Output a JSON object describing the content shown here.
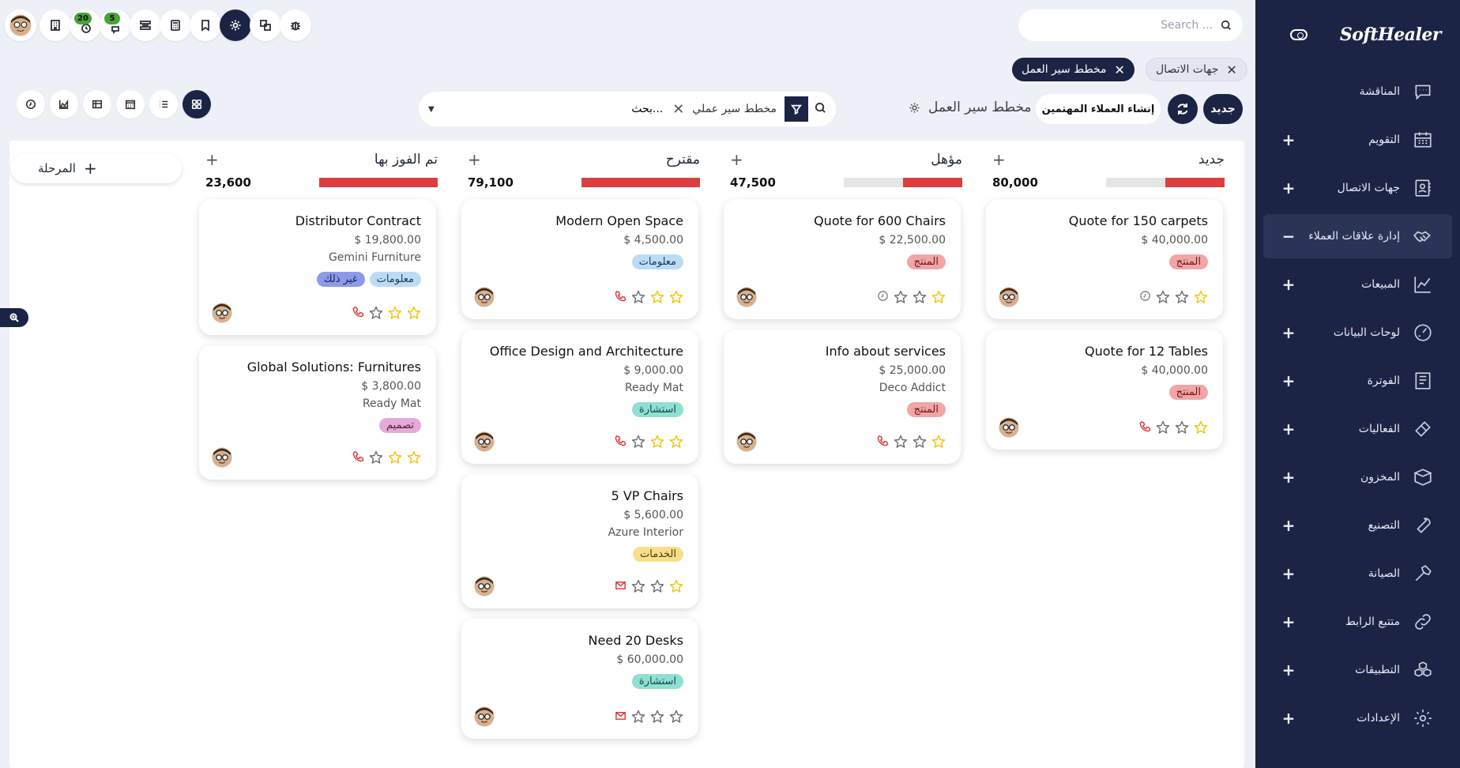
{
  "brand": "SoftHealer",
  "sidebar": {
    "items": [
      {
        "label": "المناقشة",
        "icon": "chat-icon",
        "expandable": false,
        "active": false
      },
      {
        "label": "التقويم",
        "icon": "calendar-icon",
        "expandable": true,
        "active": false
      },
      {
        "label": "جهات الاتصال",
        "icon": "contacts-icon",
        "expandable": true,
        "active": false
      },
      {
        "label": "إدارة علاقات العملاء",
        "icon": "handshake-icon",
        "expandable": true,
        "active": true
      },
      {
        "label": "المبيعات",
        "icon": "sales-chart-icon",
        "expandable": true,
        "active": false
      },
      {
        "label": "لوحات البيانات",
        "icon": "dashboard-icon",
        "expandable": true,
        "active": false
      },
      {
        "label": "الفوترة",
        "icon": "invoice-icon",
        "expandable": true,
        "active": false
      },
      {
        "label": "الفعاليات",
        "icon": "ticket-icon",
        "expandable": true,
        "active": false
      },
      {
        "label": "المخزون",
        "icon": "box-icon",
        "expandable": true,
        "active": false
      },
      {
        "label": "التصنيع",
        "icon": "wrench-icon",
        "expandable": true,
        "active": false
      },
      {
        "label": "الصيانة",
        "icon": "hammer-icon",
        "expandable": true,
        "active": false
      },
      {
        "label": "متتبع الرابط",
        "icon": "link-icon",
        "expandable": true,
        "active": false
      },
      {
        "label": "التطبيقات",
        "icon": "apps-icon",
        "expandable": true,
        "active": false
      },
      {
        "label": "الإعدادات",
        "icon": "settings-icon",
        "expandable": true,
        "active": false
      }
    ],
    "expand_symbol": "+",
    "collapse_symbol": "−"
  },
  "topbar": {
    "search_placeholder": "Search ...",
    "activity_badge": "20",
    "messages_badge": "5"
  },
  "breadcrumb_tabs": [
    {
      "label": "جهات الاتصال"
    },
    {
      "label": "مخطط سير العمل"
    }
  ],
  "toolbar": {
    "new_label": "جديد",
    "create_leads_label": "إنشاء العملاء المهتمين",
    "pipeline_title": "مخطط سير العمل",
    "search_facet": "مخطط سير عملي",
    "search_value": "بحث..."
  },
  "add_stage_label": "المرحلة",
  "colors": {
    "primary": "#1b2444",
    "progress_red": "#dc3f3f",
    "star_yellow": "#f2c200"
  },
  "columns": [
    {
      "title": "جديد",
      "total": "80,000",
      "progress_fill": 0.5,
      "cards": [
        {
          "title": "Quote for 150 carpets",
          "amount": "$ 40,000.00",
          "company": "",
          "tags": [
            {
              "label": "المنتج",
              "kind": "red"
            }
          ],
          "stars": 1,
          "activity": "clock-icon"
        },
        {
          "title": "Quote for 12 Tables",
          "amount": "$ 40,000.00",
          "company": "",
          "tags": [
            {
              "label": "المنتج",
              "kind": "red"
            }
          ],
          "stars": 1,
          "activity": "phone-icon"
        }
      ]
    },
    {
      "title": "مؤهل",
      "total": "47,500",
      "progress_fill": 0.5,
      "cards": [
        {
          "title": "Quote for 600 Chairs",
          "amount": "$ 22,500.00",
          "company": "",
          "tags": [
            {
              "label": "المنتج",
              "kind": "red"
            }
          ],
          "stars": 1,
          "activity": "clock-icon"
        },
        {
          "title": "Info about services",
          "amount": "$ 25,000.00",
          "company": "Deco Addict",
          "tags": [
            {
              "label": "المنتج",
              "kind": "red"
            }
          ],
          "stars": 1,
          "activity": "phone-icon"
        }
      ]
    },
    {
      "title": "مقترح",
      "total": "79,100",
      "progress_fill": 1,
      "cards": [
        {
          "title": "Modern Open Space",
          "amount": "$ 4,500.00",
          "company": "",
          "tags": [
            {
              "label": "معلومات",
              "kind": "blue"
            }
          ],
          "stars": 2,
          "activity": "phone-icon"
        },
        {
          "title": "Office Design and Architecture",
          "amount": "$ 9,000.00",
          "company": "Ready Mat",
          "tags": [
            {
              "label": "استشارة",
              "kind": "teal"
            }
          ],
          "stars": 2,
          "activity": "phone-icon"
        },
        {
          "title": "5 VP Chairs",
          "amount": "$ 5,600.00",
          "company": "Azure Interior",
          "tags": [
            {
              "label": "الخدمات",
              "kind": "yellow"
            }
          ],
          "stars": 1,
          "activity": "mail-icon"
        },
        {
          "title": "Need 20 Desks",
          "amount": "$ 60,000.00",
          "company": "",
          "tags": [
            {
              "label": "استشارة",
              "kind": "teal"
            }
          ],
          "stars": 0,
          "activity": "mail-icon"
        }
      ]
    },
    {
      "title": "تم الفوز بها",
      "total": "23,600",
      "progress_fill": 1,
      "cards": [
        {
          "title": "Distributor Contract",
          "amount": "$ 19,800.00",
          "company": "Gemini Furniture",
          "tags": [
            {
              "label": "معلومات",
              "kind": "blue"
            },
            {
              "label": "غير ذلك",
              "kind": "indigo"
            }
          ],
          "stars": 2,
          "activity": "phone-icon"
        },
        {
          "title": "Global Solutions: Furnitures",
          "amount": "$ 3,800.00",
          "company": "Ready Mat",
          "tags": [
            {
              "label": "تصميم",
              "kind": "pink"
            }
          ],
          "stars": 2,
          "activity": "phone-icon"
        }
      ]
    }
  ]
}
